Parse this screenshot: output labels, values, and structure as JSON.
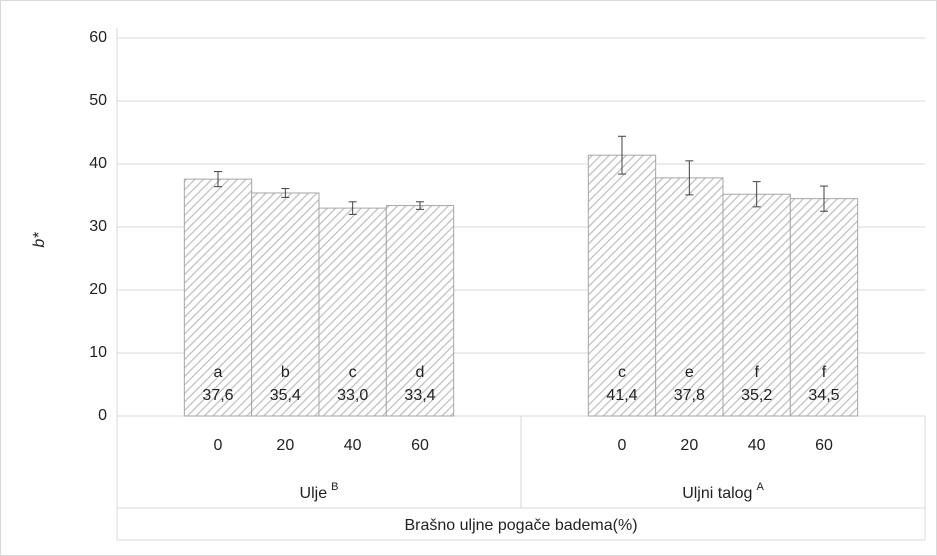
{
  "chart_data": {
    "type": "bar",
    "y_label": "b*",
    "x_label": "Brašno uljne pogače badema(%)",
    "groups": [
      {
        "label": "Ulje",
        "sup": "B"
      },
      {
        "label": "Uljni talog",
        "sup": "A"
      }
    ],
    "categories": [
      "0",
      "20",
      "40",
      "60",
      "0",
      "20",
      "40",
      "60"
    ],
    "values": [
      37.6,
      35.4,
      33.0,
      33.4,
      41.4,
      37.8,
      35.2,
      34.5
    ],
    "value_labels": [
      "37,6",
      "35,4",
      "33,0",
      "33,4",
      "41,4",
      "37,8",
      "35,2",
      "34,5"
    ],
    "errors": [
      1.2,
      0.7,
      1.0,
      0.6,
      3.0,
      2.7,
      2.0,
      2.0
    ],
    "letters": [
      "a",
      "b",
      "c",
      "d",
      "c",
      "e",
      "f",
      "f"
    ],
    "color": "#bfbfbf",
    "ylim": [
      0,
      60
    ],
    "yticks": [
      0,
      10,
      20,
      30,
      40,
      50,
      60
    ],
    "grid": true
  }
}
